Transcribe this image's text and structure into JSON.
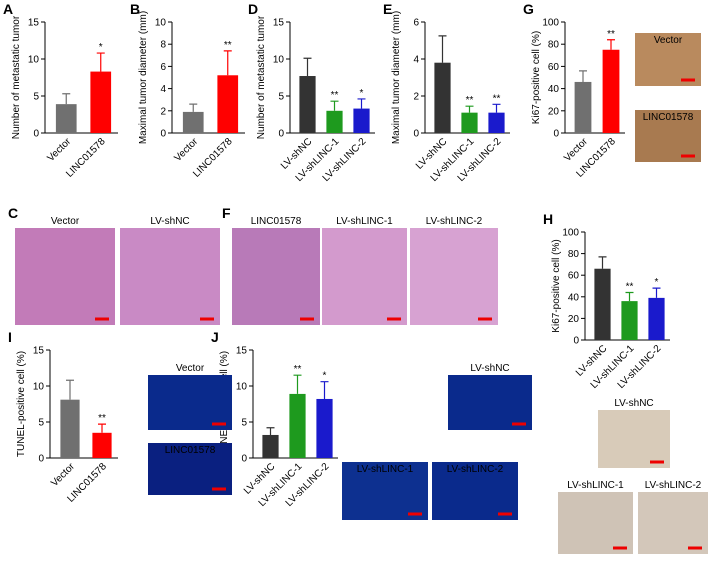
{
  "chart_data": [
    {
      "type": "bar",
      "label": "A",
      "y_label": "Number of metastatic tumor",
      "categories": [
        "Vector",
        "LINC01578"
      ],
      "values": [
        3.9,
        8.3
      ],
      "errors": [
        1.4,
        2.5
      ],
      "colors": [
        "#707070",
        "#ff0000"
      ],
      "annotations": [
        null,
        "*"
      ],
      "ylim": [
        0,
        15
      ],
      "yticks": [
        0,
        5,
        10,
        15
      ]
    },
    {
      "type": "bar",
      "label": "B",
      "y_label": "Maximal tumor diameter (mm)",
      "categories": [
        "Vector",
        "LINC01578"
      ],
      "values": [
        1.9,
        5.2
      ],
      "errors": [
        0.7,
        2.2
      ],
      "colors": [
        "#707070",
        "#ff0000"
      ],
      "annotations": [
        null,
        "**"
      ],
      "ylim": [
        0,
        10
      ],
      "yticks": [
        0,
        2,
        4,
        6,
        8,
        10
      ]
    },
    {
      "type": "bar",
      "label": "D",
      "y_label": "Number of metastatic tumor",
      "categories": [
        "LV-shNC",
        "LV-shLINC-1",
        "LV-shLINC-2"
      ],
      "values": [
        7.7,
        3.0,
        3.3
      ],
      "errors": [
        2.4,
        1.3,
        1.3
      ],
      "colors": [
        "#333333",
        "#1e9a1e",
        "#1a1acc"
      ],
      "annotations": [
        null,
        "**",
        "*"
      ],
      "ylim": [
        0,
        15
      ],
      "yticks": [
        0,
        5,
        10,
        15
      ]
    },
    {
      "type": "bar",
      "label": "E",
      "y_label": "Maximal tumor diameter (mm)",
      "categories": [
        "LV-shNC",
        "LV-shLINC-1",
        "LV-shLINC-2"
      ],
      "values": [
        3.8,
        1.1,
        1.1
      ],
      "errors": [
        1.45,
        0.35,
        0.45
      ],
      "colors": [
        "#333333",
        "#1e9a1e",
        "#1a1acc"
      ],
      "annotations": [
        null,
        "**",
        "**"
      ],
      "ylim": [
        0,
        6
      ],
      "yticks": [
        0,
        2,
        4,
        6
      ]
    },
    {
      "type": "bar",
      "label": "G",
      "y_label": "Ki67-positive cell (%)",
      "categories": [
        "Vector",
        "LINC01578"
      ],
      "values": [
        46,
        75
      ],
      "errors": [
        10,
        9
      ],
      "colors": [
        "#707070",
        "#ff0000"
      ],
      "annotations": [
        null,
        "**"
      ],
      "ylim": [
        0,
        100
      ],
      "yticks": [
        0,
        20,
        40,
        60,
        80,
        100
      ]
    },
    {
      "type": "bar",
      "label": "H",
      "y_label": "Ki67-positive cell (%)",
      "categories": [
        "LV-shNC",
        "LV-shLINC-1",
        "LV-shLINC-2"
      ],
      "values": [
        66,
        36,
        39
      ],
      "errors": [
        11,
        8,
        9
      ],
      "colors": [
        "#333333",
        "#1e9a1e",
        "#1a1acc"
      ],
      "annotations": [
        null,
        "**",
        "*"
      ],
      "ylim": [
        0,
        100
      ],
      "yticks": [
        0,
        20,
        40,
        60,
        80,
        100
      ]
    },
    {
      "type": "bar",
      "label": "I",
      "y_label": "TUNEL-positive cell (%)",
      "categories": [
        "Vector",
        "LINC01578"
      ],
      "values": [
        8.1,
        3.5
      ],
      "errors": [
        2.7,
        1.2
      ],
      "colors": [
        "#707070",
        "#ff0000"
      ],
      "annotations": [
        null,
        "**"
      ],
      "ylim": [
        0,
        15
      ],
      "yticks": [
        0,
        5,
        10,
        15
      ]
    },
    {
      "type": "bar",
      "label": "J",
      "y_label": "TUNEL-positive cell (%)",
      "categories": [
        "LV-shNC",
        "LV-shLINC-1",
        "LV-shLINC-2"
      ],
      "values": [
        3.2,
        8.9,
        8.2
      ],
      "errors": [
        1.0,
        2.6,
        2.4
      ],
      "colors": [
        "#333333",
        "#1e9a1e",
        "#1a1acc"
      ],
      "annotations": [
        null,
        "**",
        "*"
      ],
      "ylim": [
        0,
        15
      ],
      "yticks": [
        0,
        5,
        10,
        15
      ]
    }
  ],
  "figure": {
    "image_panels": [
      {
        "label": "C",
        "images": [
          "Vector",
          "LV-shNC"
        ]
      },
      {
        "label": "F",
        "images": [
          "LINC01578",
          "LV-shLINC-1",
          "LV-shLINC-2"
        ]
      },
      {
        "images": [
          "Vector",
          "LINC01578"
        ]
      },
      {
        "images": [
          "Vector",
          "LINC01578"
        ]
      },
      {
        "images": [
          "LV-shNC",
          "LV-shLINC-1",
          "LV-shLINC-2"
        ]
      },
      {
        "images": [
          "LV-shNC",
          "LV-shLINC-1",
          "LV-shLINC-2"
        ]
      }
    ]
  }
}
